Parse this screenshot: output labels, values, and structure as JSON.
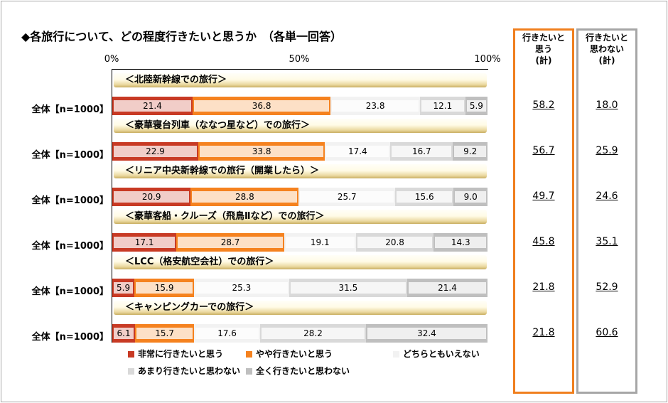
{
  "title": "◆各旅行について、どの程度行きたいと思うか　（各単一回答）",
  "axis_ticks": [
    "0%",
    "50%",
    "100%"
  ],
  "summary_headers": {
    "yes": [
      "行きたいと",
      "思う",
      "(計)"
    ],
    "no": [
      "行きたいと",
      "思わない",
      "(計)"
    ]
  },
  "colors": {
    "very_want": "#c83a24",
    "somewhat_want": "#f5821f",
    "neither": "#f2f2f2",
    "not_much": "#d9d9d9",
    "not_at_all": "#bfbfbf",
    "summary_yes_border": "#f07f1e",
    "summary_no_border": "#a6a6a6"
  },
  "chart_data": {
    "type": "bar",
    "orientation": "horizontal",
    "stacked": true,
    "xlim": [
      0,
      100
    ],
    "grid": false,
    "legend_position": "bottom",
    "series": [
      {
        "name": "非常に行きたいと思う",
        "color": "#c83a24"
      },
      {
        "name": "やや行きたいと思う",
        "color": "#f5821f"
      },
      {
        "name": "どちらともいえない",
        "color": "#f2f2f2"
      },
      {
        "name": "あまり行きたいと思わない",
        "color": "#d9d9d9"
      },
      {
        "name": "全く行きたいと思わない",
        "color": "#bfbfbf"
      }
    ],
    "rows": [
      {
        "category": "＜北陸新幹線での旅行＞",
        "group": "全体【n=1000】",
        "values": [
          21.4,
          36.8,
          23.8,
          12.1,
          5.9
        ],
        "want_total": "58.2",
        "not_want_total": "18.0"
      },
      {
        "category": "＜豪華寝台列車（ななつ星など）での旅行＞",
        "group": "全体【n=1000】",
        "values": [
          22.9,
          33.8,
          17.4,
          16.7,
          9.2
        ],
        "want_total": "56.7",
        "not_want_total": "25.9"
      },
      {
        "category": "＜リニア中央新幹線での旅行（開業したら）＞",
        "group": "全体【n=1000】",
        "values": [
          20.9,
          28.8,
          25.7,
          15.6,
          9.0
        ],
        "want_total": "49.7",
        "not_want_total": "24.6"
      },
      {
        "category": "＜豪華客船・クルーズ（飛鳥Ⅱなど）での旅行＞",
        "group": "全体【n=1000】",
        "values": [
          17.1,
          28.7,
          19.1,
          20.8,
          14.3
        ],
        "want_total": "45.8",
        "not_want_total": "35.1"
      },
      {
        "category": "＜LCC（格安航空会社）での旅行＞",
        "group": "全体【n=1000】",
        "values": [
          5.9,
          15.9,
          25.3,
          31.5,
          21.4
        ],
        "want_total": "21.8",
        "not_want_total": "52.9"
      },
      {
        "category": "＜キャンピングカーでの旅行＞",
        "group": "全体【n=1000】",
        "values": [
          6.1,
          15.7,
          17.6,
          28.2,
          32.4
        ],
        "want_total": "21.8",
        "not_want_total": "60.6"
      }
    ]
  }
}
